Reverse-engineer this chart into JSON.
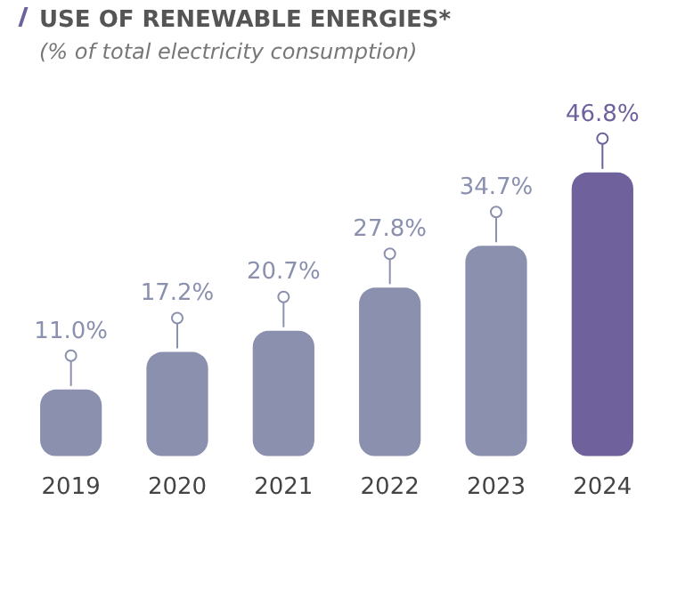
{
  "chart_data": {
    "type": "bar",
    "title": "USE OF RENEWABLE ENERGIES*",
    "subtitle": "(% of total electricity consumption)",
    "categories": [
      "2019",
      "2020",
      "2021",
      "2022",
      "2023",
      "2024"
    ],
    "values": [
      11.0,
      17.2,
      20.7,
      27.8,
      34.7,
      46.8
    ],
    "colors": [
      "#8a90ae",
      "#8a90ae",
      "#8a90ae",
      "#8a90ae",
      "#8a90ae",
      "#6e619c"
    ],
    "value_labels": [
      "11.0%",
      "17.2%",
      "20.7%",
      "27.8%",
      "34.7%",
      "46.8%"
    ],
    "grid": false,
    "legend": false
  }
}
